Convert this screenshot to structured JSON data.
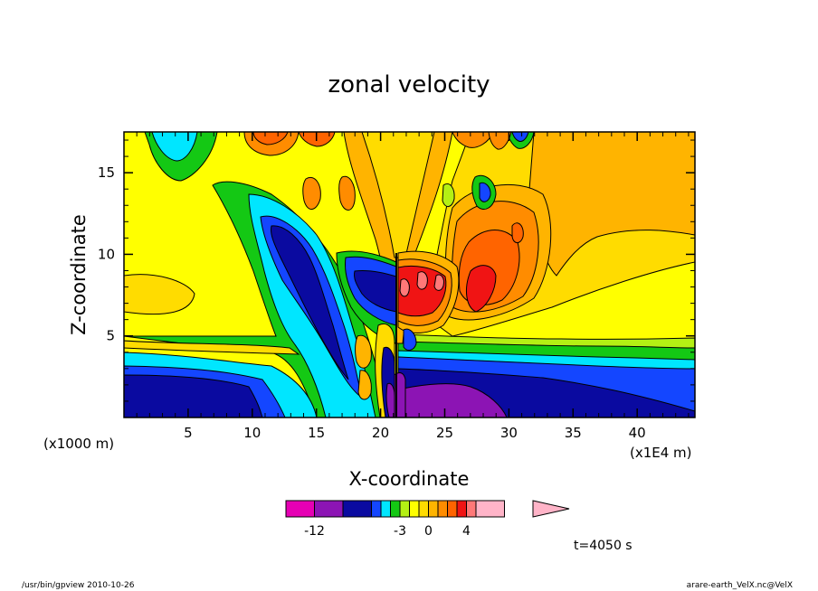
{
  "chart_data": {
    "type": "heatmap",
    "title": "zonal velocity",
    "xlabel": "X-coordinate",
    "ylabel": "Z-coordinate",
    "x_unit": "(x1E4 m)",
    "y_unit": "(x1000 m)",
    "xlim": [
      0,
      44.5
    ],
    "ylim": [
      0,
      17.5
    ],
    "x_ticks": [
      5,
      10,
      15,
      20,
      25,
      30,
      35,
      40
    ],
    "y_ticks": [
      5,
      10,
      15
    ],
    "colorbar": {
      "labels": [
        {
          "value": -12,
          "text": "-12"
        },
        {
          "value": -3,
          "text": "-3"
        },
        {
          "value": 0,
          "text": "0"
        },
        {
          "value": 4,
          "text": "4"
        }
      ],
      "levels": [
        -15,
        -12,
        -9,
        -6,
        -5,
        -4,
        -3,
        -2,
        -1,
        0,
        1,
        2,
        3,
        4,
        6,
        9,
        12
      ],
      "colors": [
        "#e600b4",
        "#8c14b4",
        "#0a0aa0",
        "#1446ff",
        "#00e6ff",
        "#14c814",
        "#b4f014",
        "#ffff00",
        "#ffdc00",
        "#ffb400",
        "#ff8c00",
        "#ff6400",
        "#f01414",
        "#ff7878",
        "#ffb4c8"
      ]
    },
    "annotations": [
      "t=4050 s"
    ]
  },
  "footer": {
    "left": "/usr/bin/gpview   2010-10-26",
    "right": "arare-earth_VelX.nc@VelX"
  }
}
